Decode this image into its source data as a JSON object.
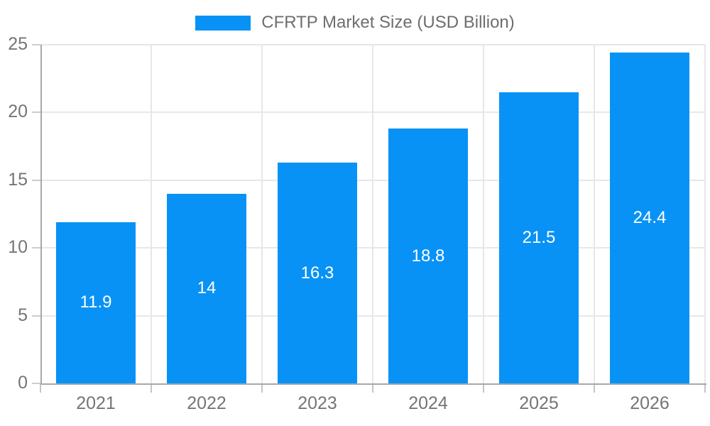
{
  "chart": {
    "legend_label": "CFRTP Market Size (USD Billion)"
  },
  "chart_data": {
    "type": "bar",
    "title": "CFRTP Market Size (USD Billion)",
    "series_name": "CFRTP Market Size (USD Billion)",
    "categories": [
      "2021",
      "2022",
      "2023",
      "2024",
      "2025",
      "2026"
    ],
    "values": [
      11.9,
      14,
      16.3,
      18.8,
      21.5,
      24.4
    ],
    "value_labels": [
      "11.9",
      "14",
      "16.3",
      "18.8",
      "21.5",
      "24.4"
    ],
    "xlabel": "",
    "ylabel": "",
    "ylim": [
      0,
      25
    ],
    "yticks": [
      0,
      5,
      10,
      15,
      20,
      25
    ],
    "grid": "horizontal-and-vertical-boundaries",
    "legend_position": "top-center",
    "colors": {
      "bar": "#0992f5",
      "value_label": "#ffffff",
      "axis_line": "#a8a8a8",
      "gridline": "#e7e7e7",
      "tick": "#c4c4c4",
      "axis_text": "#757575",
      "title_text": "#6e6e6e",
      "background": "#ffffff"
    }
  }
}
